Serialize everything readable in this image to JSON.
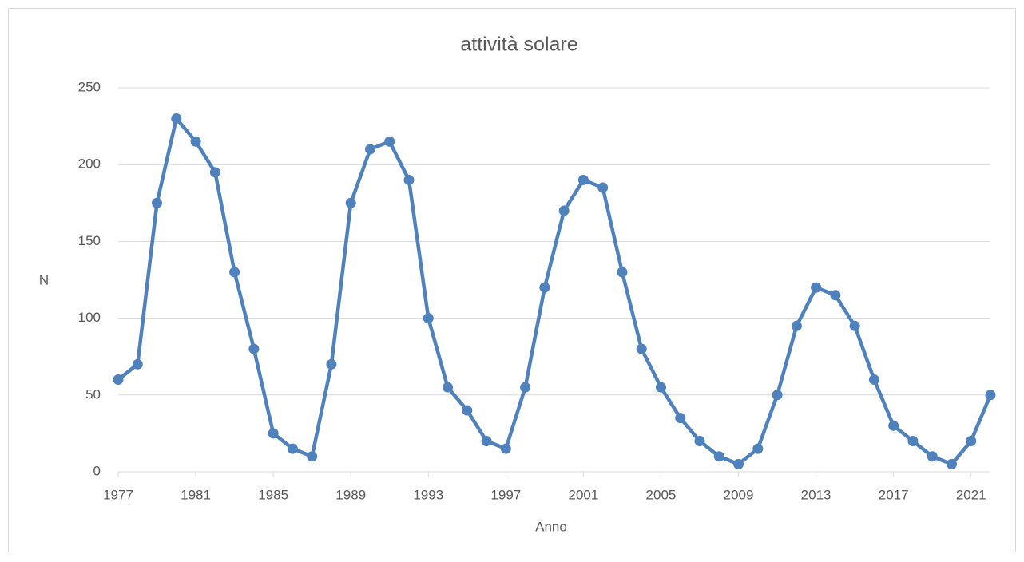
{
  "chart_data": {
    "type": "line",
    "title": "attività solare",
    "x_label": "Anno",
    "y_label": "N",
    "x": [
      1977,
      1978,
      1979,
      1980,
      1981,
      1982,
      1983,
      1984,
      1985,
      1986,
      1987,
      1988,
      1989,
      1990,
      1991,
      1992,
      1993,
      1994,
      1995,
      1996,
      1997,
      1998,
      1999,
      2000,
      2001,
      2002,
      2003,
      2004,
      2005,
      2006,
      2007,
      2008,
      2009,
      2010,
      2011,
      2012,
      2013,
      2014,
      2015,
      2016,
      2017,
      2018,
      2019,
      2020,
      2021,
      2022
    ],
    "values": [
      60,
      70,
      175,
      230,
      215,
      195,
      130,
      80,
      25,
      15,
      10,
      70,
      175,
      210,
      215,
      190,
      100,
      55,
      40,
      20,
      15,
      55,
      120,
      170,
      190,
      185,
      130,
      80,
      55,
      35,
      20,
      10,
      5,
      15,
      50,
      95,
      120,
      115,
      95,
      60,
      30,
      20,
      10,
      5,
      20,
      50
    ],
    "color": "#4f81bd",
    "xlim": [
      1977,
      2022
    ],
    "xticks": [
      1977,
      1981,
      1985,
      1989,
      1993,
      1997,
      2001,
      2005,
      2009,
      2013,
      2017,
      2021
    ],
    "ylim": [
      0,
      250
    ],
    "yticks": [
      0,
      50,
      100,
      150,
      200,
      250
    ],
    "grid": true
  }
}
